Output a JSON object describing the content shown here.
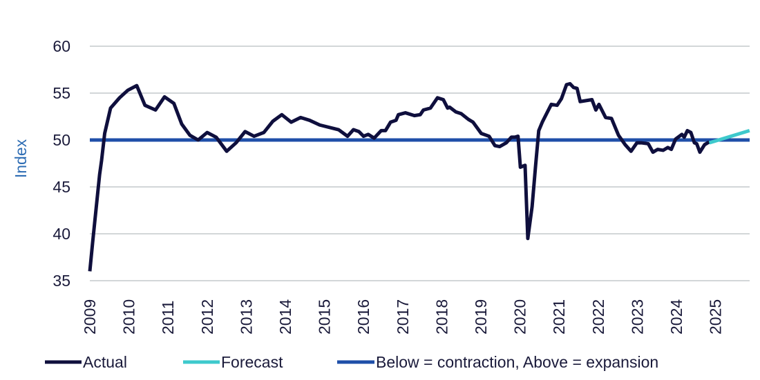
{
  "chart_data": {
    "type": "line",
    "title": "",
    "xlabel": "",
    "ylabel": "Index",
    "ylim": [
      35,
      60
    ],
    "xlim": [
      2009,
      2025.9
    ],
    "yticks": [
      "35",
      "40",
      "45",
      "50",
      "55",
      "60"
    ],
    "xticks": [
      "2009",
      "2010",
      "2011",
      "2012",
      "2013",
      "2014",
      "2015",
      "2016",
      "2017",
      "2018",
      "2019",
      "2020",
      "2021",
      "2022",
      "2023",
      "2024",
      "2025"
    ],
    "grid": true,
    "legend_position": "bottom",
    "threshold": {
      "name": "Below = contraction, Above = expansion",
      "value": 50,
      "color": "#1f4fa8"
    },
    "series": [
      {
        "name": "Actual",
        "color": "#0f0f3d",
        "points": [
          [
            2009.0,
            36.0
          ],
          [
            2009.07,
            39.0
          ],
          [
            2009.25,
            46.3
          ],
          [
            2009.3,
            47.8
          ],
          [
            2009.38,
            50.7
          ],
          [
            2009.53,
            53.4
          ],
          [
            2009.76,
            54.5
          ],
          [
            2009.97,
            55.3
          ],
          [
            2010.2,
            55.8
          ],
          [
            2010.41,
            53.7
          ],
          [
            2010.68,
            53.2
          ],
          [
            2010.91,
            54.6
          ],
          [
            2011.15,
            53.9
          ],
          [
            2011.35,
            51.7
          ],
          [
            2011.56,
            50.5
          ],
          [
            2011.77,
            50.0
          ],
          [
            2012.0,
            50.8
          ],
          [
            2012.23,
            50.3
          ],
          [
            2012.5,
            48.8
          ],
          [
            2012.74,
            49.7
          ],
          [
            2012.97,
            50.9
          ],
          [
            2013.2,
            50.4
          ],
          [
            2013.45,
            50.8
          ],
          [
            2013.68,
            52.0
          ],
          [
            2013.91,
            52.7
          ],
          [
            2014.15,
            51.9
          ],
          [
            2014.39,
            52.4
          ],
          [
            2014.62,
            52.1
          ],
          [
            2014.88,
            51.6
          ],
          [
            2015.36,
            51.1
          ],
          [
            2015.59,
            50.4
          ],
          [
            2015.74,
            51.1
          ],
          [
            2015.88,
            50.9
          ],
          [
            2016.0,
            50.4
          ],
          [
            2016.12,
            50.6
          ],
          [
            2016.27,
            50.2
          ],
          [
            2016.45,
            51.0
          ],
          [
            2016.56,
            51.0
          ],
          [
            2016.69,
            51.9
          ],
          [
            2016.83,
            52.1
          ],
          [
            2016.89,
            52.7
          ],
          [
            2017.07,
            52.9
          ],
          [
            2017.3,
            52.6
          ],
          [
            2017.45,
            52.7
          ],
          [
            2017.53,
            53.2
          ],
          [
            2017.71,
            53.4
          ],
          [
            2017.89,
            54.5
          ],
          [
            2018.04,
            54.3
          ],
          [
            2018.15,
            53.4
          ],
          [
            2018.2,
            53.5
          ],
          [
            2018.36,
            53.0
          ],
          [
            2018.5,
            52.8
          ],
          [
            2018.68,
            52.2
          ],
          [
            2018.8,
            51.9
          ],
          [
            2019.01,
            50.7
          ],
          [
            2019.21,
            50.4
          ],
          [
            2019.36,
            49.4
          ],
          [
            2019.48,
            49.3
          ],
          [
            2019.65,
            49.7
          ],
          [
            2019.78,
            50.3
          ],
          [
            2019.87,
            50.3
          ],
          [
            2019.95,
            50.4
          ],
          [
            2020.01,
            47.1
          ],
          [
            2020.13,
            47.3
          ],
          [
            2020.2,
            39.5
          ],
          [
            2020.31,
            42.9
          ],
          [
            2020.4,
            47.3
          ],
          [
            2020.48,
            51.0
          ],
          [
            2020.57,
            51.9
          ],
          [
            2020.8,
            53.8
          ],
          [
            2020.95,
            53.7
          ],
          [
            2021.06,
            54.4
          ],
          [
            2021.19,
            55.9
          ],
          [
            2021.28,
            56.0
          ],
          [
            2021.37,
            55.6
          ],
          [
            2021.46,
            55.5
          ],
          [
            2021.54,
            54.1
          ],
          [
            2021.84,
            54.3
          ],
          [
            2021.94,
            53.2
          ],
          [
            2022.02,
            53.8
          ],
          [
            2022.19,
            52.4
          ],
          [
            2022.34,
            52.3
          ],
          [
            2022.52,
            50.5
          ],
          [
            2022.69,
            49.5
          ],
          [
            2022.84,
            48.8
          ],
          [
            2022.99,
            49.7
          ],
          [
            2023.1,
            49.7
          ],
          [
            2023.28,
            49.6
          ],
          [
            2023.4,
            48.7
          ],
          [
            2023.52,
            49.0
          ],
          [
            2023.66,
            48.9
          ],
          [
            2023.78,
            49.2
          ],
          [
            2023.87,
            49.0
          ],
          [
            2023.98,
            50.1
          ],
          [
            2024.14,
            50.6
          ],
          [
            2024.2,
            50.3
          ],
          [
            2024.28,
            51.0
          ],
          [
            2024.37,
            50.8
          ],
          [
            2024.46,
            49.7
          ],
          [
            2024.52,
            49.6
          ],
          [
            2024.6,
            48.7
          ],
          [
            2024.72,
            49.5
          ],
          [
            2024.84,
            49.8
          ]
        ]
      },
      {
        "name": "Forecast",
        "color": "#3ec9cc",
        "points": [
          [
            2024.84,
            49.7
          ],
          [
            2025.87,
            51.0
          ]
        ]
      }
    ]
  }
}
